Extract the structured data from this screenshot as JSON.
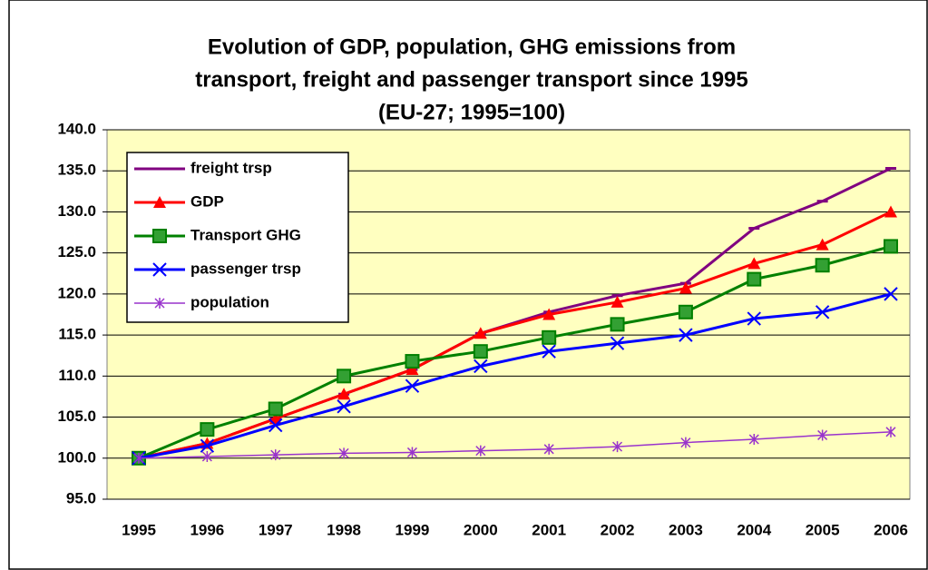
{
  "chart_data": {
    "type": "line",
    "title": [
      "Evolution of GDP, population, GHG emissions from",
      "transport, freight and passenger transport since 1995",
      "(EU-27; 1995=100)"
    ],
    "categories": [
      "1995",
      "1996",
      "1997",
      "1998",
      "1999",
      "2000",
      "2001",
      "2002",
      "2003",
      "2004",
      "2005",
      "2006"
    ],
    "ylim": [
      95,
      140
    ],
    "yticks": [
      {
        "value": 95,
        "label": "95.0"
      },
      {
        "value": 100,
        "label": "100.0"
      },
      {
        "value": 105,
        "label": "105.0"
      },
      {
        "value": 110,
        "label": "110.0"
      },
      {
        "value": 115,
        "label": "115.0"
      },
      {
        "value": 120,
        "label": "120.0"
      },
      {
        "value": 125,
        "label": "125.0"
      },
      {
        "value": 130,
        "label": "130.0"
      },
      {
        "value": 135,
        "label": "135.0"
      },
      {
        "value": 140,
        "label": "140.0"
      }
    ],
    "grid": true,
    "legend": "upper left",
    "series": [
      {
        "name": "freight trsp",
        "color": "#800080",
        "marker": "dash",
        "values": [
          100,
          101.8,
          104.8,
          107.8,
          110.8,
          115.2,
          117.8,
          119.8,
          121.3,
          128.0,
          131.3,
          135.3
        ]
      },
      {
        "name": "GDP",
        "color": "#ff0000",
        "marker": "triangle",
        "values": [
          100,
          101.8,
          104.8,
          107.8,
          110.8,
          115.2,
          117.5,
          119.0,
          120.7,
          123.7,
          126.0,
          130.0
        ]
      },
      {
        "name": "Transport GHG",
        "color": "#008000",
        "marker": "square",
        "values": [
          100,
          103.5,
          106.0,
          110.0,
          111.8,
          113.0,
          114.7,
          116.3,
          117.8,
          121.8,
          123.5,
          125.8
        ]
      },
      {
        "name": "passenger trsp",
        "color": "#0000ff",
        "marker": "cross",
        "values": [
          100,
          101.5,
          104.0,
          106.3,
          108.8,
          111.2,
          113.0,
          114.0,
          115.0,
          117.0,
          117.8,
          120.0
        ]
      },
      {
        "name": "population",
        "color": "#9933cc",
        "marker": "star",
        "values": [
          100,
          100.2,
          100.4,
          100.6,
          100.7,
          100.9,
          101.1,
          101.4,
          101.9,
          102.3,
          102.8,
          103.2
        ]
      }
    ]
  }
}
